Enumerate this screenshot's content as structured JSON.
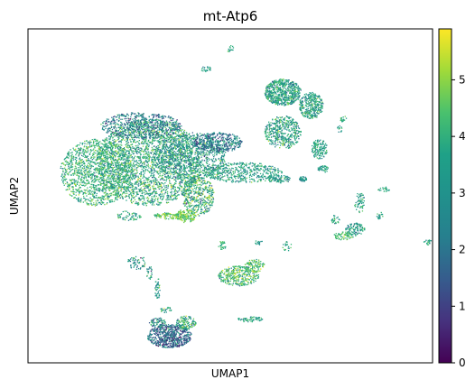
{
  "chart_data": {
    "type": "scatter",
    "title": "mt-Atp6",
    "xlabel": "UMAP1",
    "ylabel": "UMAP2",
    "x_ticks": [],
    "y_ticks": [],
    "grid": false,
    "legend": "none",
    "colormap": "viridis",
    "colorbar": {
      "position": "right",
      "range": [
        0,
        5.9
      ],
      "ticks": [
        {
          "value": 0,
          "label": "0"
        },
        {
          "value": 1,
          "label": "1"
        },
        {
          "value": 2,
          "label": "2"
        },
        {
          "value": 3,
          "label": "3"
        },
        {
          "value": 4,
          "label": "4"
        },
        {
          "value": 5,
          "label": "5"
        }
      ]
    },
    "xlim": [
      0,
      100
    ],
    "ylim": [
      0,
      100
    ],
    "clusters": [
      {
        "cx": 17,
        "cy": 57,
        "rx": 9,
        "ry": 10,
        "n": 1400,
        "mean": 3.8,
        "sd": 0.7
      },
      {
        "cx": 30,
        "cy": 60,
        "rx": 13,
        "ry": 13,
        "n": 2600,
        "mean": 3.6,
        "sd": 0.8
      },
      {
        "cx": 40,
        "cy": 62,
        "rx": 9,
        "ry": 7,
        "n": 900,
        "mean": 3.1,
        "sd": 0.8
      },
      {
        "cx": 28,
        "cy": 71,
        "rx": 10,
        "ry": 4,
        "n": 600,
        "mean": 2.5,
        "sd": 0.9
      },
      {
        "cx": 47,
        "cy": 66,
        "rx": 6,
        "ry": 3,
        "n": 400,
        "mean": 2.3,
        "sd": 0.9
      },
      {
        "cx": 53,
        "cy": 57,
        "rx": 10,
        "ry": 3,
        "n": 500,
        "mean": 3.4,
        "sd": 0.6
      },
      {
        "cx": 42,
        "cy": 50,
        "rx": 4,
        "ry": 6,
        "n": 450,
        "mean": 3.6,
        "sd": 1.0
      },
      {
        "cx": 39,
        "cy": 44,
        "rx": 2.5,
        "ry": 2,
        "n": 150,
        "mean": 4.6,
        "sd": 0.6
      },
      {
        "cx": 35,
        "cy": 44,
        "rx": 4,
        "ry": 1,
        "n": 120,
        "mean": 4.5,
        "sd": 0.7
      },
      {
        "cx": 25,
        "cy": 44,
        "rx": 3,
        "ry": 1.5,
        "n": 60,
        "mean": 3.6,
        "sd": 0.8
      },
      {
        "cx": 62,
        "cy": 55,
        "rx": 3,
        "ry": 1.2,
        "n": 90,
        "mean": 3.2,
        "sd": 0.6
      },
      {
        "cx": 68,
        "cy": 55,
        "rx": 1,
        "ry": 0.8,
        "n": 40,
        "mean": 3.0,
        "sd": 0.4
      },
      {
        "cx": 63,
        "cy": 81,
        "rx": 4.5,
        "ry": 4,
        "n": 650,
        "mean": 3.4,
        "sd": 0.7
      },
      {
        "cx": 70,
        "cy": 77,
        "rx": 3,
        "ry": 4,
        "n": 350,
        "mean": 3.3,
        "sd": 0.7
      },
      {
        "cx": 63,
        "cy": 69,
        "rx": 4.5,
        "ry": 5,
        "n": 450,
        "mean": 3.4,
        "sd": 0.7
      },
      {
        "cx": 72,
        "cy": 64,
        "rx": 2,
        "ry": 3,
        "n": 150,
        "mean": 3.4,
        "sd": 0.6
      },
      {
        "cx": 73,
        "cy": 58,
        "rx": 1.5,
        "ry": 1,
        "n": 40,
        "mean": 3.3,
        "sd": 0.5
      },
      {
        "cx": 78,
        "cy": 73,
        "rx": 0.8,
        "ry": 1,
        "n": 20,
        "mean": 3.5,
        "sd": 0.5
      },
      {
        "cx": 77,
        "cy": 70,
        "rx": 0.6,
        "ry": 1,
        "n": 12,
        "mean": 3.5,
        "sd": 0.5
      },
      {
        "cx": 44,
        "cy": 88,
        "rx": 1.3,
        "ry": 0.8,
        "n": 25,
        "mean": 3.5,
        "sd": 0.5
      },
      {
        "cx": 50,
        "cy": 94,
        "rx": 0.8,
        "ry": 1.2,
        "n": 15,
        "mean": 3.5,
        "sd": 0.5
      },
      {
        "cx": 82,
        "cy": 48,
        "rx": 1.3,
        "ry": 3,
        "n": 60,
        "mean": 3.4,
        "sd": 0.6
      },
      {
        "cx": 81,
        "cy": 40,
        "rx": 2.5,
        "ry": 2,
        "n": 110,
        "mean": 3.3,
        "sd": 0.6
      },
      {
        "cx": 78,
        "cy": 38,
        "rx": 2.5,
        "ry": 1.2,
        "n": 70,
        "mean": 4.1,
        "sd": 0.6
      },
      {
        "cx": 76,
        "cy": 43,
        "rx": 1,
        "ry": 1.5,
        "n": 30,
        "mean": 3.4,
        "sd": 0.6
      },
      {
        "cx": 87,
        "cy": 44,
        "rx": 0.8,
        "ry": 1.3,
        "n": 20,
        "mean": 3.4,
        "sd": 0.5
      },
      {
        "cx": 88,
        "cy": 52,
        "rx": 1.5,
        "ry": 0.8,
        "n": 20,
        "mean": 3.4,
        "sd": 0.5
      },
      {
        "cx": 99,
        "cy": 36,
        "rx": 1.3,
        "ry": 0.8,
        "n": 25,
        "mean": 3.4,
        "sd": 0.5
      },
      {
        "cx": 48,
        "cy": 35,
        "rx": 1,
        "ry": 1.5,
        "n": 30,
        "mean": 4.0,
        "sd": 0.5
      },
      {
        "cx": 57,
        "cy": 36,
        "rx": 1,
        "ry": 0.8,
        "n": 15,
        "mean": 3.2,
        "sd": 0.5
      },
      {
        "cx": 64,
        "cy": 35,
        "rx": 1.2,
        "ry": 1.5,
        "n": 20,
        "mean": 3.6,
        "sd": 0.6
      },
      {
        "cx": 52,
        "cy": 26,
        "rx": 5,
        "ry": 3,
        "n": 350,
        "mean": 4.1,
        "sd": 0.8
      },
      {
        "cx": 56,
        "cy": 29,
        "rx": 2.5,
        "ry": 2,
        "n": 100,
        "mean": 4.2,
        "sd": 0.7
      },
      {
        "cx": 27,
        "cy": 30,
        "rx": 2.5,
        "ry": 2,
        "n": 60,
        "mean": 3.1,
        "sd": 0.8
      },
      {
        "cx": 32,
        "cy": 22,
        "rx": 0.6,
        "ry": 3.5,
        "n": 40,
        "mean": 3.2,
        "sd": 0.7
      },
      {
        "cx": 30,
        "cy": 27,
        "rx": 0.8,
        "ry": 2,
        "n": 25,
        "mean": 3.2,
        "sd": 0.7
      },
      {
        "cx": 34,
        "cy": 16,
        "rx": 1.5,
        "ry": 1,
        "n": 25,
        "mean": 3.5,
        "sd": 0.7
      },
      {
        "cx": 35,
        "cy": 8,
        "rx": 5.5,
        "ry": 3.5,
        "n": 650,
        "mean": 2.0,
        "sd": 0.9
      },
      {
        "cx": 39,
        "cy": 12,
        "rx": 2.5,
        "ry": 2,
        "n": 150,
        "mean": 3.6,
        "sd": 0.9
      },
      {
        "cx": 32,
        "cy": 12,
        "rx": 2,
        "ry": 1.5,
        "n": 80,
        "mean": 2.8,
        "sd": 0.9
      },
      {
        "cx": 55,
        "cy": 13,
        "rx": 3.5,
        "ry": 0.8,
        "n": 60,
        "mean": 3.4,
        "sd": 0.6
      }
    ]
  }
}
